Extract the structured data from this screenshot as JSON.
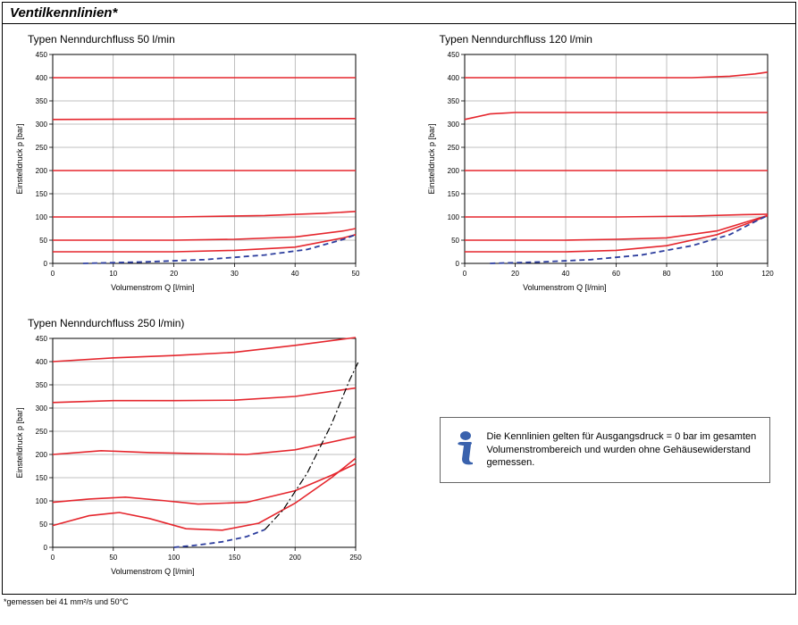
{
  "page_title": "Ventilkennlinien*",
  "footnote": "*gemessen bei 41 mm²/s und 50°C",
  "info_box": {
    "text": "Die Kennlinien gelten für Ausgangsdruck = 0 bar im gesamten Volumenstrombereich und wurden ohne Gehäusewiderstand gemessen.",
    "icon_fill": "#3a62ad",
    "border_color": "#666666"
  },
  "common": {
    "ylabel": "Einstelldruck p [bar]",
    "xlabel": "Volumenstrom Q [l/min]",
    "ylim": [
      0,
      450
    ],
    "ytick_step": 50,
    "grid_color": "#808080",
    "axis_color": "#000000",
    "series_color": "#e5262d",
    "dashed_color": "#2d3e9e",
    "dashdot_color": "#000000",
    "title_fontsize": 12,
    "label_fontsize": 9,
    "tick_fontsize": 8,
    "line_width": 1.6,
    "dashed_width": 1.8,
    "background": "#ffffff"
  },
  "charts": [
    {
      "id": "chart50",
      "title": "Typen Nenndurchfluss 50 l/min",
      "xlim": [
        0,
        50
      ],
      "xtick_step": 10,
      "series": [
        {
          "pts": [
            [
              0,
              400
            ],
            [
              50,
              400
            ]
          ]
        },
        {
          "pts": [
            [
              0,
              310
            ],
            [
              50,
              312
            ]
          ]
        },
        {
          "pts": [
            [
              0,
              200
            ],
            [
              50,
              200
            ]
          ]
        },
        {
          "pts": [
            [
              0,
              100
            ],
            [
              20,
              100
            ],
            [
              35,
              103
            ],
            [
              45,
              108
            ],
            [
              50,
              112
            ]
          ]
        },
        {
          "pts": [
            [
              0,
              50
            ],
            [
              20,
              50
            ],
            [
              30,
              52
            ],
            [
              40,
              57
            ],
            [
              48,
              70
            ],
            [
              50,
              75
            ]
          ]
        },
        {
          "pts": [
            [
              0,
              25
            ],
            [
              20,
              25
            ],
            [
              30,
              28
            ],
            [
              40,
              35
            ],
            [
              48,
              55
            ],
            [
              50,
              62
            ]
          ]
        }
      ],
      "dashed": {
        "pts": [
          [
            5,
            0
          ],
          [
            15,
            3
          ],
          [
            25,
            8
          ],
          [
            35,
            18
          ],
          [
            42,
            30
          ],
          [
            48,
            52
          ],
          [
            50,
            62
          ]
        ]
      }
    },
    {
      "id": "chart120",
      "title": "Typen Nenndurchfluss 120 l/min",
      "xlim": [
        0,
        120
      ],
      "xtick_step": 20,
      "series": [
        {
          "pts": [
            [
              0,
              400
            ],
            [
              90,
              400
            ],
            [
              105,
              403
            ],
            [
              115,
              408
            ],
            [
              120,
              412
            ]
          ]
        },
        {
          "pts": [
            [
              0,
              310
            ],
            [
              10,
              322
            ],
            [
              20,
              325
            ],
            [
              120,
              325
            ]
          ]
        },
        {
          "pts": [
            [
              0,
              200
            ],
            [
              120,
              200
            ]
          ]
        },
        {
          "pts": [
            [
              0,
              100
            ],
            [
              60,
              100
            ],
            [
              90,
              102
            ],
            [
              110,
              105
            ],
            [
              120,
              106
            ]
          ]
        },
        {
          "pts": [
            [
              0,
              50
            ],
            [
              40,
              50
            ],
            [
              60,
              52
            ],
            [
              80,
              55
            ],
            [
              100,
              70
            ],
            [
              115,
              95
            ],
            [
              120,
              103
            ]
          ]
        },
        {
          "pts": [
            [
              0,
              25
            ],
            [
              40,
              25
            ],
            [
              60,
              28
            ],
            [
              80,
              38
            ],
            [
              100,
              62
            ],
            [
              115,
              92
            ],
            [
              120,
              103
            ]
          ]
        }
      ],
      "dashed": {
        "pts": [
          [
            10,
            0
          ],
          [
            30,
            3
          ],
          [
            50,
            8
          ],
          [
            70,
            18
          ],
          [
            90,
            38
          ],
          [
            105,
            62
          ],
          [
            115,
            90
          ],
          [
            120,
            103
          ]
        ]
      }
    },
    {
      "id": "chart250",
      "title": "Typen Nenndurchfluss 250 l/min)",
      "xlim": [
        0,
        250
      ],
      "xtick_step": 50,
      "series": [
        {
          "pts": [
            [
              0,
              400
            ],
            [
              50,
              408
            ],
            [
              100,
              413
            ],
            [
              150,
              420
            ],
            [
              200,
              435
            ],
            [
              250,
              452
            ]
          ]
        },
        {
          "pts": [
            [
              0,
              312
            ],
            [
              50,
              316
            ],
            [
              100,
              316
            ],
            [
              150,
              317
            ],
            [
              200,
              325
            ],
            [
              250,
              343
            ]
          ]
        },
        {
          "pts": [
            [
              0,
              200
            ],
            [
              40,
              208
            ],
            [
              80,
              204
            ],
            [
              120,
              202
            ],
            [
              160,
              200
            ],
            [
              200,
              210
            ],
            [
              250,
              238
            ]
          ]
        },
        {
          "pts": [
            [
              0,
              97
            ],
            [
              30,
              104
            ],
            [
              60,
              108
            ],
            [
              90,
              101
            ],
            [
              120,
              93
            ],
            [
              160,
              97
            ],
            [
              200,
              122
            ],
            [
              230,
              155
            ],
            [
              250,
              180
            ]
          ]
        },
        {
          "pts": [
            [
              0,
              47
            ],
            [
              30,
              68
            ],
            [
              55,
              75
            ],
            [
              80,
              62
            ],
            [
              110,
              40
            ],
            [
              140,
              37
            ],
            [
              170,
              52
            ],
            [
              200,
              95
            ],
            [
              230,
              150
            ],
            [
              250,
              192
            ]
          ]
        }
      ],
      "dashed": {
        "pts": [
          [
            100,
            0
          ],
          [
            120,
            5
          ],
          [
            140,
            12
          ],
          [
            160,
            23
          ],
          [
            175,
            38
          ]
        ]
      },
      "dashdot": {
        "pts": [
          [
            175,
            38
          ],
          [
            190,
            80
          ],
          [
            210,
            160
          ],
          [
            230,
            265
          ],
          [
            245,
            360
          ],
          [
            252,
            398
          ]
        ]
      }
    }
  ]
}
